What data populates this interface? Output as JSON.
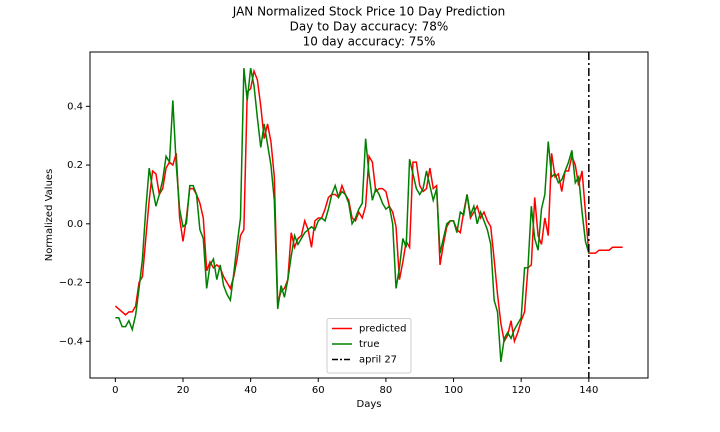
{
  "chart_data": {
    "type": "line",
    "title": "JAN Normalized Stock Price 10 Day Prediction",
    "subtitle_lines": [
      "Day to Day accuracy: 78%",
      "10 day accuracy: 75%"
    ],
    "x_label": "Days",
    "y_label": "Normalized Values",
    "x": [
      0,
      1,
      2,
      3,
      4,
      5,
      6,
      7,
      8,
      9,
      10,
      11,
      12,
      13,
      14,
      15,
      16,
      17,
      18,
      19,
      20,
      21,
      22,
      23,
      24,
      25,
      26,
      27,
      28,
      29,
      30,
      31,
      32,
      33,
      34,
      35,
      36,
      37,
      38,
      39,
      40,
      41,
      42,
      43,
      44,
      45,
      46,
      47,
      48,
      49,
      50,
      51,
      52,
      53,
      54,
      55,
      56,
      57,
      58,
      59,
      60,
      61,
      62,
      63,
      64,
      65,
      66,
      67,
      68,
      69,
      70,
      71,
      72,
      73,
      74,
      75,
      76,
      77,
      78,
      79,
      80,
      81,
      82,
      83,
      84,
      85,
      86,
      87,
      88,
      89,
      90,
      91,
      92,
      93,
      94,
      95,
      96,
      97,
      98,
      99,
      100,
      101,
      102,
      103,
      104,
      105,
      106,
      107,
      108,
      109,
      110,
      111,
      112,
      113,
      114,
      115,
      116,
      117,
      118,
      119,
      120,
      121,
      122,
      123,
      124,
      125,
      126,
      127,
      128,
      129,
      130,
      131,
      132,
      133,
      134,
      135,
      136,
      137,
      138,
      139,
      140,
      141,
      142,
      143,
      144,
      145,
      146,
      147,
      148,
      149,
      150
    ],
    "series": [
      {
        "name": "predicted",
        "color": "#ff0000",
        "values": [
          -0.28,
          -0.29,
          -0.3,
          -0.31,
          -0.3,
          -0.3,
          -0.28,
          -0.2,
          -0.18,
          -0.05,
          0.08,
          0.18,
          0.17,
          0.1,
          0.12,
          0.19,
          0.21,
          0.2,
          0.24,
          0.02,
          -0.06,
          0.02,
          0.12,
          0.12,
          0.1,
          0.07,
          0.02,
          -0.16,
          -0.13,
          -0.15,
          -0.14,
          -0.15,
          -0.18,
          -0.2,
          -0.22,
          -0.18,
          -0.12,
          -0.04,
          -0.02,
          0.45,
          0.46,
          0.52,
          0.49,
          0.4,
          0.29,
          0.34,
          0.28,
          0.16,
          -0.27,
          -0.23,
          -0.22,
          -0.19,
          -0.03,
          -0.08,
          -0.05,
          -0.04,
          0.01,
          -0.02,
          -0.08,
          0.01,
          0.02,
          0.02,
          0.05,
          0.09,
          0.1,
          0.1,
          0.09,
          0.13,
          0.1,
          0.08,
          0.02,
          0.01,
          0.04,
          0.02,
          0.06,
          0.23,
          0.21,
          0.11,
          0.12,
          0.12,
          0.11,
          0.06,
          0.04,
          -0.01,
          -0.19,
          -0.13,
          -0.06,
          -0.08,
          0.21,
          0.21,
          0.13,
          0.11,
          0.12,
          0.19,
          0.12,
          0.13,
          -0.14,
          -0.07,
          -0.01,
          0.01,
          0.01,
          -0.02,
          -0.03,
          0.04,
          0.1,
          0.02,
          0.04,
          0.06,
          0.02,
          0.04,
          0.01,
          -0.01,
          -0.12,
          -0.24,
          -0.34,
          -0.4,
          -0.38,
          -0.33,
          -0.4,
          -0.37,
          -0.33,
          -0.3,
          -0.15,
          -0.14,
          0.09,
          -0.04,
          -0.07,
          0.02,
          -0.04,
          0.24,
          0.16,
          0.17,
          0.11,
          0.18,
          0.18,
          0.23,
          0.2,
          0.13,
          0.18,
          0.04,
          -0.1,
          -0.1,
          -0.1,
          -0.09,
          -0.09,
          -0.09,
          -0.09,
          -0.08,
          -0.08,
          -0.08,
          -0.08
        ]
      },
      {
        "name": "true",
        "color": "#008000",
        "values": [
          -0.32,
          -0.32,
          -0.35,
          -0.35,
          -0.33,
          -0.36,
          -0.31,
          -0.22,
          -0.12,
          0.05,
          0.19,
          0.12,
          0.06,
          0.1,
          0.15,
          0.23,
          0.21,
          0.42,
          0.2,
          0.05,
          -0.01,
          0.0,
          0.13,
          0.13,
          0.1,
          -0.02,
          -0.05,
          -0.22,
          -0.14,
          -0.12,
          -0.19,
          -0.14,
          -0.21,
          -0.24,
          -0.26,
          -0.17,
          -0.07,
          0.02,
          0.53,
          0.42,
          0.53,
          0.47,
          0.36,
          0.26,
          0.34,
          0.27,
          0.2,
          0.08,
          -0.29,
          -0.21,
          -0.25,
          -0.19,
          -0.11,
          -0.04,
          -0.07,
          -0.05,
          -0.03,
          -0.02,
          -0.01,
          -0.02,
          0.01,
          0.02,
          0.01,
          0.05,
          0.1,
          0.13,
          0.09,
          0.11,
          0.1,
          0.07,
          0.0,
          0.02,
          0.05,
          0.07,
          0.29,
          0.17,
          0.08,
          0.12,
          0.1,
          0.07,
          0.05,
          0.06,
          0.0,
          -0.22,
          -0.15,
          -0.05,
          -0.08,
          0.22,
          0.17,
          0.12,
          0.1,
          0.12,
          0.18,
          0.13,
          0.08,
          0.12,
          -0.1,
          -0.05,
          0.0,
          0.01,
          0.01,
          -0.03,
          0.04,
          0.03,
          0.1,
          0.03,
          0.06,
          0.0,
          0.04,
          0.01,
          -0.02,
          -0.07,
          -0.26,
          -0.3,
          -0.47,
          -0.39,
          -0.37,
          -0.39,
          -0.36,
          -0.34,
          -0.32,
          -0.15,
          -0.15,
          0.06,
          -0.05,
          -0.09,
          0.05,
          0.1,
          0.28,
          0.16,
          0.17,
          0.14,
          0.15,
          0.18,
          0.21,
          0.25,
          0.14,
          0.16,
          0.04,
          -0.06,
          -0.1,
          null,
          null,
          null,
          null,
          null,
          null,
          null,
          null,
          null,
          null
        ]
      }
    ],
    "vlines": [
      {
        "x": 140,
        "label": "april 27",
        "color": "#000000"
      }
    ],
    "xlim": [
      -7.5,
      157.5
    ],
    "ylim": [
      -0.525,
      0.585
    ],
    "xticks": [
      0,
      20,
      40,
      60,
      80,
      100,
      120,
      140
    ],
    "yticks": [
      {
        "value": -0.4,
        "label": "−0.4"
      },
      {
        "value": -0.2,
        "label": "−0.2"
      },
      {
        "value": 0,
        "label": "0.0"
      },
      0.2,
      0.4
    ],
    "legend": "lower center",
    "grid": false
  }
}
